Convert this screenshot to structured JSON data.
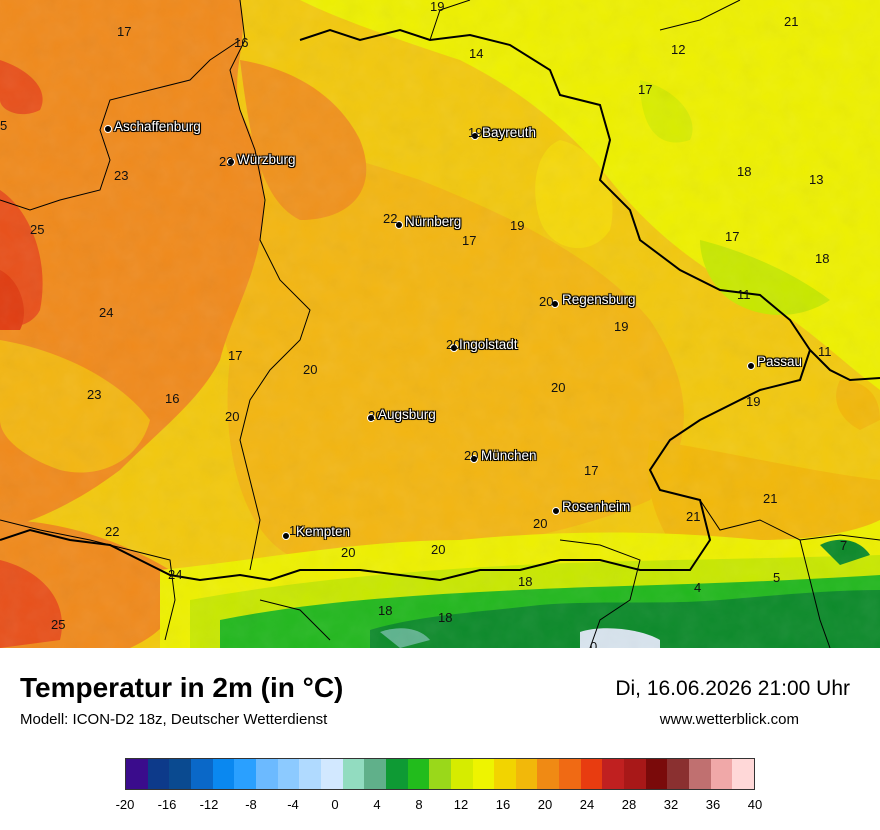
{
  "map": {
    "cities": [
      {
        "name": "Aschaffenburg",
        "value": ""
      },
      {
        "name": "Würzburg",
        "value": "23"
      },
      {
        "name": "Bayreuth",
        "value": "19"
      },
      {
        "name": "Nürnberg",
        "value": "22"
      },
      {
        "name": "Regensburg",
        "value": "20"
      },
      {
        "name": "Ingolstadt",
        "value": "20"
      },
      {
        "name": "Passau",
        "value": ""
      },
      {
        "name": "Augsburg",
        "value": "20"
      },
      {
        "name": "München",
        "value": "20"
      },
      {
        "name": "Rosenheim",
        "value": ""
      },
      {
        "name": "Kempten",
        "value": "19"
      }
    ],
    "values": [
      "19",
      "17",
      "16",
      "14",
      "12",
      "21",
      "5",
      "17",
      "23",
      "18",
      "13",
      "25",
      "17",
      "19",
      "17",
      "18",
      "11",
      "24",
      "19",
      "11",
      "17",
      "20",
      "23",
      "16",
      "20",
      "20",
      "19",
      "17",
      "21",
      "21",
      "22",
      "20",
      "20",
      "20",
      "18",
      "7",
      "24",
      "4",
      "5",
      "18",
      "18",
      "25",
      "0"
    ],
    "colors": {
      "hot": "#e8501a",
      "orange": "#f08a1c",
      "amber": "#f5b414",
      "gold": "#f2cf0e",
      "yellow": "#eef000",
      "lime": "#c8e800",
      "green": "#22b81e",
      "darkgreen": "#0c8a2a",
      "teal": "#5fb38e"
    }
  },
  "footer": {
    "title": "Temperatur in 2m (in °C)",
    "model": "Modell: ICON-D2 18z, Deutscher Wetterdienst",
    "datetime": "Di, 16.06.2026 21:00 Uhr",
    "website": "www.wetterblick.com"
  },
  "legend": {
    "colors": [
      "#3a0c8c",
      "#0d3a8a",
      "#0a4a90",
      "#0a68c8",
      "#0a88f0",
      "#2aa0ff",
      "#6cbaff",
      "#8ccaff",
      "#b0daff",
      "#d2e8ff",
      "#92dcc0",
      "#60b08a",
      "#0e9a34",
      "#22bc1c",
      "#9ad81a",
      "#d6ec00",
      "#eef400",
      "#f2d400",
      "#f2b80a",
      "#f08a14",
      "#f06a14",
      "#e83c10",
      "#c02020",
      "#a81818",
      "#7a0a0a",
      "#8a3030",
      "#c07070",
      "#f0a8a8",
      "#ffd8d8"
    ],
    "ticks": [
      "-20",
      "-16",
      "-12",
      "-8",
      "-4",
      "0",
      "4",
      "8",
      "12",
      "16",
      "20",
      "24",
      "28",
      "32",
      "36",
      "40"
    ]
  }
}
